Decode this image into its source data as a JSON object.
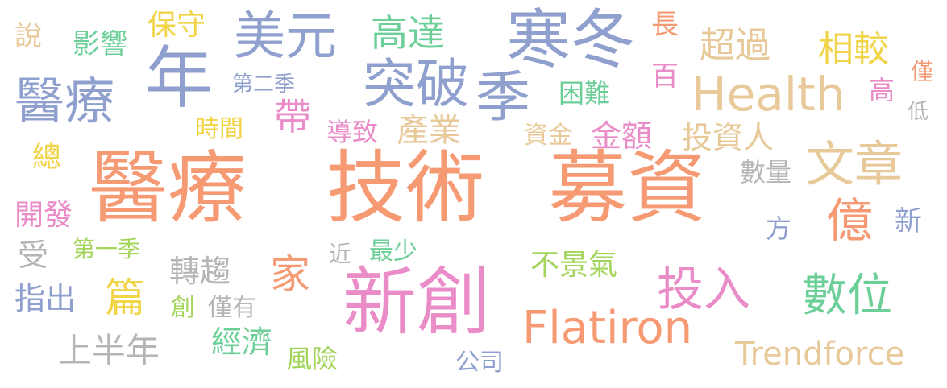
{
  "colors": {
    "orange": "#f59a73",
    "blue": "#8fa0cf",
    "pink": "#e98cc8",
    "green": "#6ccf98",
    "yellow": "#f1d447",
    "tan": "#e8c99a",
    "grey": "#b5b5b5",
    "lime": "#a3d45b"
  },
  "words": [
    {
      "text": "醫療",
      "color": "orange"
    },
    {
      "text": "技術",
      "color": "orange"
    },
    {
      "text": "募資",
      "color": "orange"
    },
    {
      "text": "新創",
      "color": "pink"
    },
    {
      "text": "寒冬",
      "color": "blue"
    },
    {
      "text": "年",
      "color": "blue"
    },
    {
      "text": "美元",
      "color": "blue"
    },
    {
      "text": "突破",
      "color": "blue"
    },
    {
      "text": "季",
      "color": "blue"
    },
    {
      "text": "Health",
      "color": "tan"
    },
    {
      "text": "醫療",
      "color": "blue"
    },
    {
      "text": "Flatiron",
      "color": "orange"
    },
    {
      "text": "數位",
      "color": "green"
    },
    {
      "text": "投入",
      "color": "pink"
    },
    {
      "text": "文章",
      "color": "tan"
    },
    {
      "text": "億",
      "color": "orange"
    },
    {
      "text": "Trendforce",
      "color": "tan"
    },
    {
      "text": "高達",
      "color": "green"
    },
    {
      "text": "相較",
      "color": "yellow"
    },
    {
      "text": "超過",
      "color": "tan"
    },
    {
      "text": "帶",
      "color": "pink"
    },
    {
      "text": "金額",
      "color": "pink"
    },
    {
      "text": "投資人",
      "color": "tan"
    },
    {
      "text": "篇",
      "color": "yellow"
    },
    {
      "text": "家",
      "color": "orange"
    },
    {
      "text": "上半年",
      "color": "grey"
    },
    {
      "text": "說",
      "color": "tan"
    },
    {
      "text": "影響",
      "color": "green"
    },
    {
      "text": "保守",
      "color": "yellow"
    },
    {
      "text": "第二季",
      "color": "blue"
    },
    {
      "text": "長",
      "color": "orange"
    },
    {
      "text": "百",
      "color": "pink"
    },
    {
      "text": "困難",
      "color": "green"
    },
    {
      "text": "高",
      "color": "pink"
    },
    {
      "text": "僅",
      "color": "orange"
    },
    {
      "text": "低",
      "color": "grey"
    },
    {
      "text": "時間",
      "color": "yellow"
    },
    {
      "text": "導致",
      "color": "pink"
    },
    {
      "text": "產業",
      "color": "tan"
    },
    {
      "text": "資金",
      "color": "tan"
    },
    {
      "text": "總",
      "color": "yellow"
    },
    {
      "text": "數量",
      "color": "grey"
    },
    {
      "text": "開發",
      "color": "pink"
    },
    {
      "text": "新",
      "color": "blue"
    },
    {
      "text": "方",
      "color": "blue"
    },
    {
      "text": "受",
      "color": "grey"
    },
    {
      "text": "第一季",
      "color": "lime"
    },
    {
      "text": "近",
      "color": "grey"
    },
    {
      "text": "最少",
      "color": "green"
    },
    {
      "text": "不景氣",
      "color": "lime"
    },
    {
      "text": "轉趨",
      "color": "grey"
    },
    {
      "text": "指出",
      "color": "blue"
    },
    {
      "text": "創",
      "color": "lime"
    },
    {
      "text": "僅有",
      "color": "grey"
    },
    {
      "text": "經濟",
      "color": "green"
    },
    {
      "text": "風險",
      "color": "lime"
    },
    {
      "text": "公司",
      "color": "blue"
    }
  ]
}
